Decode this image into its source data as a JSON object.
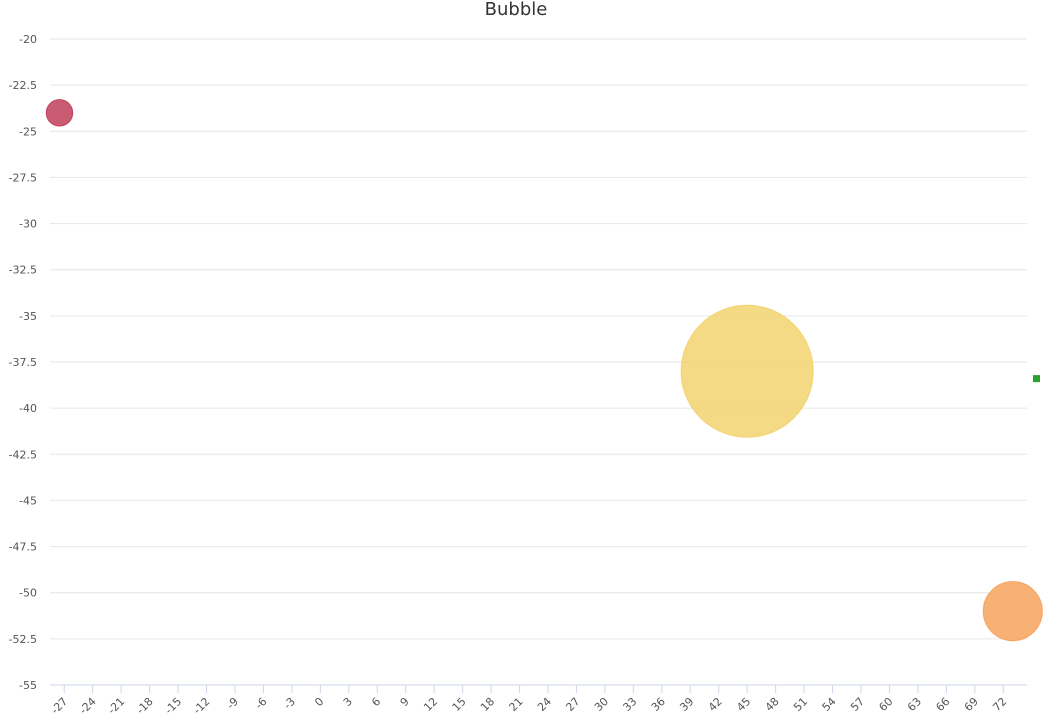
{
  "chart_data": {
    "type": "bubble",
    "title": "Bubble",
    "xlabel": "",
    "ylabel": "",
    "xlim": [
      -28.5,
      74.5
    ],
    "ylim": [
      -55,
      -20
    ],
    "x_ticks": [
      -27,
      -24,
      -21,
      -18,
      -15,
      -12,
      -9,
      -6,
      -3,
      0,
      3,
      6,
      9,
      12,
      15,
      18,
      21,
      24,
      27,
      30,
      33,
      36,
      39,
      42,
      45,
      48,
      51,
      54,
      57,
      60,
      63,
      66,
      69,
      72
    ],
    "x_tick_labels": [
      "-27",
      "-24",
      "-21",
      "-18",
      "-15",
      "-12",
      "-9",
      "-6",
      "-3",
      "0",
      "3",
      "6",
      "9",
      "12",
      "15",
      "18",
      "21",
      "24",
      "27",
      "30",
      "33",
      "36",
      "39",
      "42",
      "45",
      "48",
      "51",
      "54",
      "57",
      "60",
      "63",
      "66",
      "69",
      "72"
    ],
    "y_ticks": [
      -20,
      -22.5,
      -25,
      -27.5,
      -30,
      -32.5,
      -35,
      -37.5,
      -40,
      -42.5,
      -45,
      -47.5,
      -50,
      -52.5,
      -55
    ],
    "y_tick_labels": [
      "-20",
      "-22.5",
      "-25",
      "-27.5",
      "-30",
      "-32.5",
      "-35",
      "-37.5",
      "-40",
      "-42.5",
      "-45",
      "-47.5",
      "-50",
      "-52.5",
      "-55"
    ],
    "grid": true,
    "series": [
      {
        "points": [
          {
            "x": -27.5,
            "y": -24,
            "size": 1
          }
        ],
        "color": "#c0405a"
      },
      {
        "points": [
          {
            "x": 45,
            "y": -38,
            "size": 25
          }
        ],
        "color": "#f2d46f"
      },
      {
        "points": [
          {
            "x": 73,
            "y": -51,
            "size": 5
          }
        ],
        "color": "#f7a35c"
      },
      {
        "points": [
          {
            "x": 76,
            "y": -38.4,
            "size": 1
          }
        ],
        "color": "#2ca02c"
      }
    ]
  }
}
